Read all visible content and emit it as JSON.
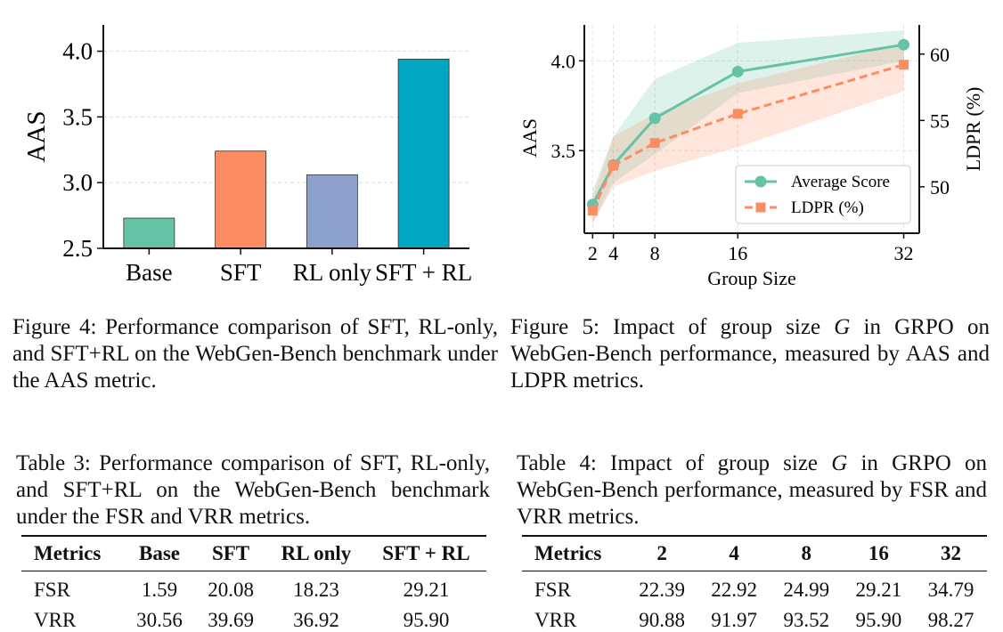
{
  "chart_data": [
    {
      "type": "bar",
      "categories": [
        "Base",
        "SFT",
        "RL only",
        "SFT + RL"
      ],
      "values": [
        2.73,
        3.24,
        3.06,
        3.94
      ],
      "colors": [
        "#66c2a5",
        "#fc8d62",
        "#8da0cb",
        "#00a6c2"
      ],
      "title": "",
      "xlabel": "",
      "ylabel": "AAS",
      "ylim": [
        2.5,
        4.2
      ],
      "yticks": [
        "2.5",
        "3.0",
        "3.5",
        "4.0"
      ],
      "ytick_values": [
        2.5,
        3.0,
        3.5,
        4.0
      ],
      "grid": true
    },
    {
      "type": "line",
      "x": [
        2,
        4,
        8,
        16,
        32
      ],
      "xticks": [
        "2",
        "4",
        "8",
        "16",
        "32"
      ],
      "xlabel": "Group Size",
      "ylabel": "AAS",
      "y2label": "LDPR (%)",
      "ylim": [
        3.04,
        4.2
      ],
      "y2lim": [
        46.5,
        62.2
      ],
      "yticks": [
        "3.5",
        "4.0"
      ],
      "ytick_values": [
        3.5,
        4.0
      ],
      "y2ticks": [
        "50",
        "55",
        "60"
      ],
      "y2tick_values": [
        50,
        55,
        60
      ],
      "series": [
        {
          "name": "Average Score",
          "axis": "left",
          "color": "#66c2a5",
          "marker": "circle",
          "values": [
            3.2,
            3.42,
            3.68,
            3.94,
            4.09
          ],
          "band_low": [
            3.1,
            3.32,
            3.48,
            3.82,
            4.0
          ],
          "band_high": [
            3.28,
            3.58,
            3.9,
            4.1,
            4.17
          ]
        },
        {
          "name": "LDPR (%)",
          "axis": "right",
          "color": "#fc8d62",
          "marker": "square",
          "values": [
            48.2,
            51.6,
            53.3,
            55.5,
            59.2
          ],
          "band_low": [
            47.2,
            50.0,
            51.2,
            53.0,
            57.2
          ],
          "band_high": [
            49.2,
            53.8,
            55.5,
            57.8,
            60.8
          ]
        }
      ],
      "legend_position": "bottom-right",
      "grid": true
    }
  ],
  "figure4_caption": "Figure 4: Performance comparison of SFT, RL-only, and SFT+RL on the WebGen-Bench benchmark under the AAS metric.",
  "figure5": {
    "caption_before": "Figure 5: Impact of group size ",
    "caption_var": "G",
    "caption_after": " in GRPO on WebGen-Bench performance, measured by AAS and LDPR metrics."
  },
  "table3": {
    "caption": "Table 3: Performance comparison of SFT, RL-only, and SFT+RL on the WebGen-Bench benchmark under the FSR and VRR metrics.",
    "headers": [
      "Metrics",
      "Base",
      "SFT",
      "RL only",
      "SFT + RL"
    ],
    "rows": [
      [
        "FSR",
        "1.59",
        "20.08",
        "18.23",
        "29.21"
      ],
      [
        "VRR",
        "30.56",
        "39.69",
        "36.92",
        "95.90"
      ]
    ]
  },
  "table4": {
    "caption_before": "Table 4: Impact of group size ",
    "caption_var": "G",
    "caption_after": " in GRPO on WebGen-Bench performance, measured by FSR and VRR metrics.",
    "headers": [
      "Metrics",
      "2",
      "4",
      "8",
      "16",
      "32"
    ],
    "rows": [
      [
        "FSR",
        "22.39",
        "22.92",
        "24.99",
        "29.21",
        "34.79"
      ],
      [
        "VRR",
        "90.88",
        "91.97",
        "93.52",
        "95.90",
        "98.27"
      ]
    ]
  }
}
